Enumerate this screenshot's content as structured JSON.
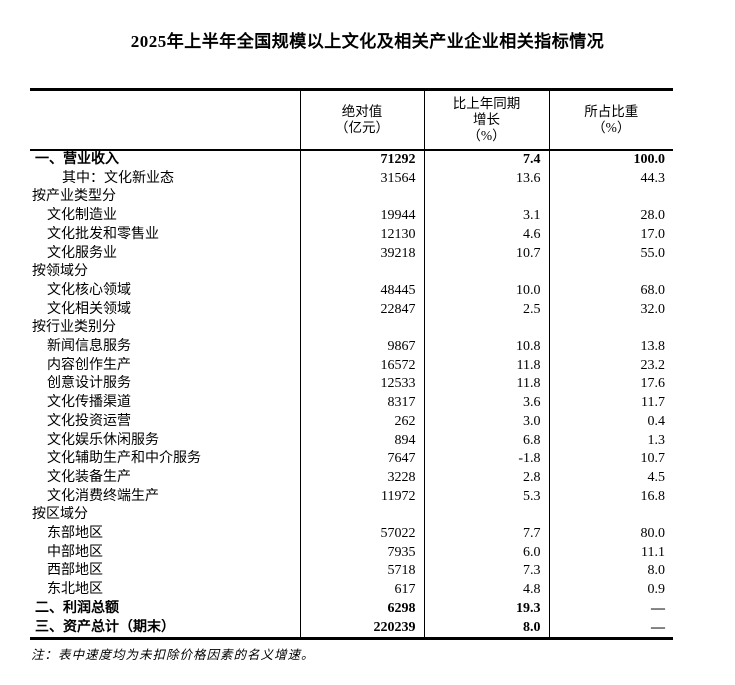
{
  "title": "2025年上半年全国规模以上文化及相关产业企业相关指标情况",
  "table": {
    "headers": {
      "col1": "",
      "col2": [
        "绝对值",
        "（亿元）"
      ],
      "col3": [
        "比上年同期",
        "增长",
        "（%）"
      ],
      "col4": [
        "所占比重",
        "（%）"
      ]
    },
    "rows": [
      {
        "label": "一、营业收入",
        "type": "total",
        "abs": "71292",
        "growth": "7.4",
        "share": "100.0"
      },
      {
        "label": "其中：文化新业态",
        "type": "subitem",
        "abs": "31564",
        "growth": "13.6",
        "share": "44.3"
      },
      {
        "label": "按产业类型分",
        "type": "group",
        "abs": "",
        "growth": "",
        "share": ""
      },
      {
        "label": "文化制造业",
        "type": "item",
        "abs": "19944",
        "growth": "3.1",
        "share": "28.0"
      },
      {
        "label": "文化批发和零售业",
        "type": "item",
        "abs": "12130",
        "growth": "4.6",
        "share": "17.0"
      },
      {
        "label": "文化服务业",
        "type": "item",
        "abs": "39218",
        "growth": "10.7",
        "share": "55.0"
      },
      {
        "label": "按领域分",
        "type": "group",
        "abs": "",
        "growth": "",
        "share": ""
      },
      {
        "label": "文化核心领域",
        "type": "item",
        "abs": "48445",
        "growth": "10.0",
        "share": "68.0"
      },
      {
        "label": "文化相关领域",
        "type": "item",
        "abs": "22847",
        "growth": "2.5",
        "share": "32.0"
      },
      {
        "label": "按行业类别分",
        "type": "group",
        "abs": "",
        "growth": "",
        "share": ""
      },
      {
        "label": "新闻信息服务",
        "type": "item",
        "abs": "9867",
        "growth": "10.8",
        "share": "13.8"
      },
      {
        "label": "内容创作生产",
        "type": "item",
        "abs": "16572",
        "growth": "11.8",
        "share": "23.2"
      },
      {
        "label": "创意设计服务",
        "type": "item",
        "abs": "12533",
        "growth": "11.8",
        "share": "17.6"
      },
      {
        "label": "文化传播渠道",
        "type": "item",
        "abs": "8317",
        "growth": "3.6",
        "share": "11.7"
      },
      {
        "label": "文化投资运营",
        "type": "item",
        "abs": "262",
        "growth": "3.0",
        "share": "0.4"
      },
      {
        "label": "文化娱乐休闲服务",
        "type": "item",
        "abs": "894",
        "growth": "6.8",
        "share": "1.3"
      },
      {
        "label": "文化辅助生产和中介服务",
        "type": "item",
        "abs": "7647",
        "growth": "-1.8",
        "share": "10.7"
      },
      {
        "label": "文化装备生产",
        "type": "item",
        "abs": "3228",
        "growth": "2.8",
        "share": "4.5"
      },
      {
        "label": "文化消费终端生产",
        "type": "item",
        "abs": "11972",
        "growth": "5.3",
        "share": "16.8"
      },
      {
        "label": "按区域分",
        "type": "group",
        "abs": "",
        "growth": "",
        "share": ""
      },
      {
        "label": "东部地区",
        "type": "item",
        "abs": "57022",
        "growth": "7.7",
        "share": "80.0"
      },
      {
        "label": "中部地区",
        "type": "item",
        "abs": "7935",
        "growth": "6.0",
        "share": "11.1"
      },
      {
        "label": "西部地区",
        "type": "item",
        "abs": "5718",
        "growth": "7.3",
        "share": "8.0"
      },
      {
        "label": "东北地区",
        "type": "item",
        "abs": "617",
        "growth": "4.8",
        "share": "0.9"
      },
      {
        "label": "二、利润总额",
        "type": "total",
        "abs": "6298",
        "growth": "19.3",
        "share": "—"
      },
      {
        "label": "三、资产总计（期末）",
        "type": "total",
        "abs": "220239",
        "growth": "8.0",
        "share": "—"
      }
    ]
  },
  "note": "注：表中速度均为未扣除价格因素的名义增速。"
}
